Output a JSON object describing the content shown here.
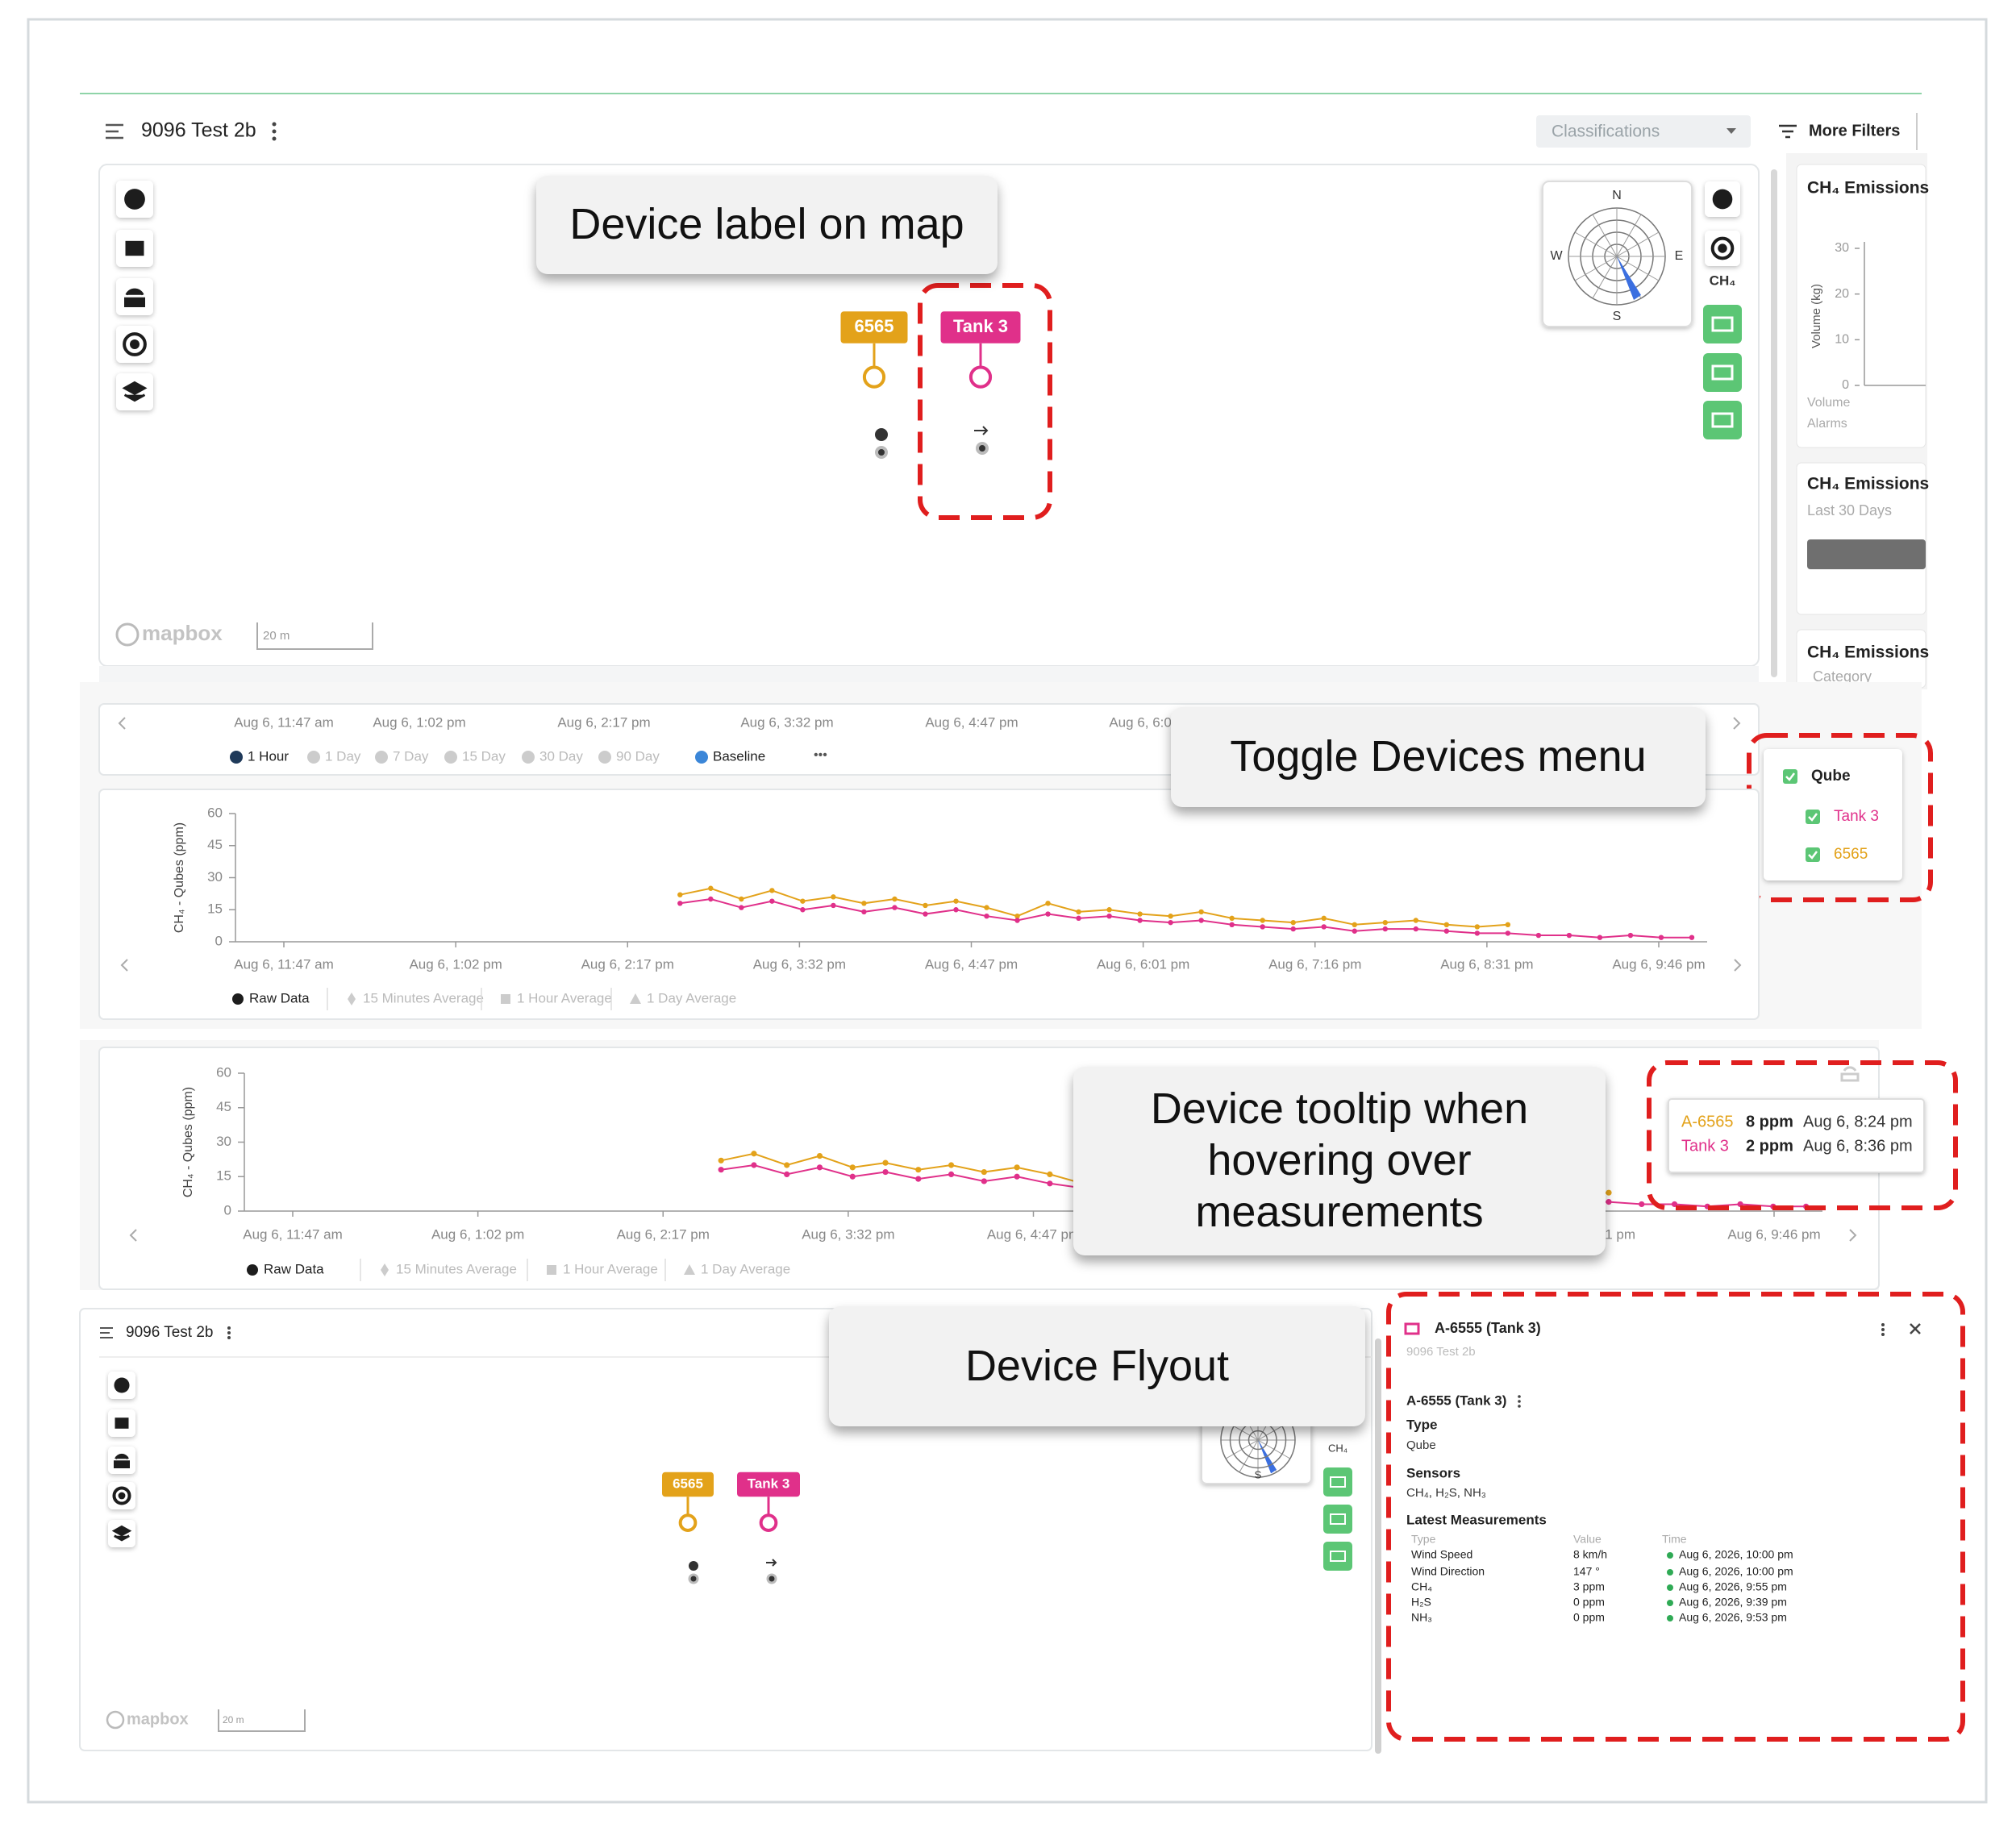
{
  "header": {
    "project": "9096 Test 2b",
    "classifications": "Classifications",
    "more_filters": "More Filters"
  },
  "map": {
    "devices": [
      "6565",
      "Tank 3"
    ],
    "compass": [
      "N",
      "E",
      "S",
      "W"
    ],
    "ch4_icon": "CH₄",
    "scale": "20 m",
    "logo": "mapbox"
  },
  "emissions": [
    {
      "title": "CH₄ Emissions",
      "axis_label": "Volume (kg)",
      "ticks": [
        30,
        20,
        10,
        0
      ],
      "legend": [
        "Volume",
        "Alarms"
      ]
    },
    {
      "title": "CH₄ Emissions",
      "subtitle": "Last 30 Days"
    },
    {
      "title": "CH₄ Emissions",
      "subtitle": "Category"
    }
  ],
  "timeline": {
    "ranges": [
      "1 Hour",
      "1 Day",
      "7 Day",
      "15 Day",
      "30 Day",
      "90 Day",
      "Baseline"
    ],
    "more": "•••"
  },
  "toggle_menu": {
    "group": "Qube",
    "devices": [
      "Tank 3",
      "6565"
    ]
  },
  "ch4_chart": {
    "y_label": "CH₄ - Qubes (ppm)",
    "ylim": [
      0,
      60
    ],
    "yticks": [
      0,
      15,
      30,
      45,
      60
    ],
    "x_labels": [
      "Aug 6, 11:47 am",
      "Aug 6, 1:02 pm",
      "Aug 6, 2:17 pm",
      "Aug 6, 3:32 pm",
      "Aug 6, 4:47 pm",
      "Aug 6, 6:01 pm",
      "Aug 6, 7:16 pm",
      "Aug 6, 8:31 pm",
      "Aug 6, 9:46 pm"
    ],
    "series": [
      {
        "name": "6565",
        "color": "#e3a21a",
        "values": [
          null,
          null,
          null,
          null,
          null,
          null,
          null,
          null,
          null,
          null,
          null,
          null,
          null,
          null,
          22,
          25,
          20,
          24,
          19,
          21,
          18,
          20,
          17,
          19,
          16,
          12,
          18,
          14,
          15,
          13,
          12,
          14,
          11,
          10,
          9,
          11,
          8,
          9,
          10,
          8,
          7,
          8,
          null,
          null,
          null,
          null,
          null,
          null
        ]
      },
      {
        "name": "Tank 3",
        "color": "#e0308a",
        "values": [
          null,
          null,
          null,
          null,
          null,
          null,
          null,
          null,
          null,
          null,
          null,
          null,
          null,
          null,
          18,
          20,
          16,
          19,
          15,
          17,
          14,
          16,
          13,
          15,
          12,
          10,
          13,
          11,
          12,
          10,
          9,
          10,
          8,
          7,
          6,
          7,
          5,
          6,
          6,
          5,
          4,
          4,
          3,
          3,
          2,
          3,
          2,
          2
        ]
      }
    ],
    "legend": [
      "Raw Data",
      "15 Minutes Average",
      "1 Hour Average",
      "1 Day Average"
    ]
  },
  "tooltip": {
    "rows": [
      {
        "device": "A-6565",
        "value": "8 ppm",
        "time": "Aug 6, 8:24 pm"
      },
      {
        "device": "Tank 3",
        "value": "2 ppm",
        "time": "Aug 6, 8:36 pm"
      }
    ]
  },
  "flyout": {
    "title": "A-6555 (Tank 3)",
    "project": "9096 Test 2b",
    "name": "A-6555 (Tank 3)",
    "type_label": "Type",
    "type": "Qube",
    "sensors_label": "Sensors",
    "sensors": "CH₄, H₂S, NH₃",
    "latest_label": "Latest Measurements",
    "columns": [
      "Type",
      "Value",
      "Time"
    ],
    "rows": [
      [
        "Wind Speed",
        "8 km/h",
        "Aug 6, 2026, 10:00 pm"
      ],
      [
        "Wind Direction",
        "147 °",
        "Aug 6, 2026, 10:00 pm"
      ],
      [
        "CH₄",
        "3 ppm",
        "Aug 6, 2026, 9:55 pm"
      ],
      [
        "H₂S",
        "0 ppm",
        "Aug 6, 2026, 9:39 pm"
      ],
      [
        "NH₃",
        "0 ppm",
        "Aug 6, 2026, 9:53 pm"
      ]
    ]
  },
  "callouts": [
    "Device label on map",
    "Toggle Devices menu",
    "Device tooltip when hovering over measurements",
    "Device Flyout"
  ]
}
